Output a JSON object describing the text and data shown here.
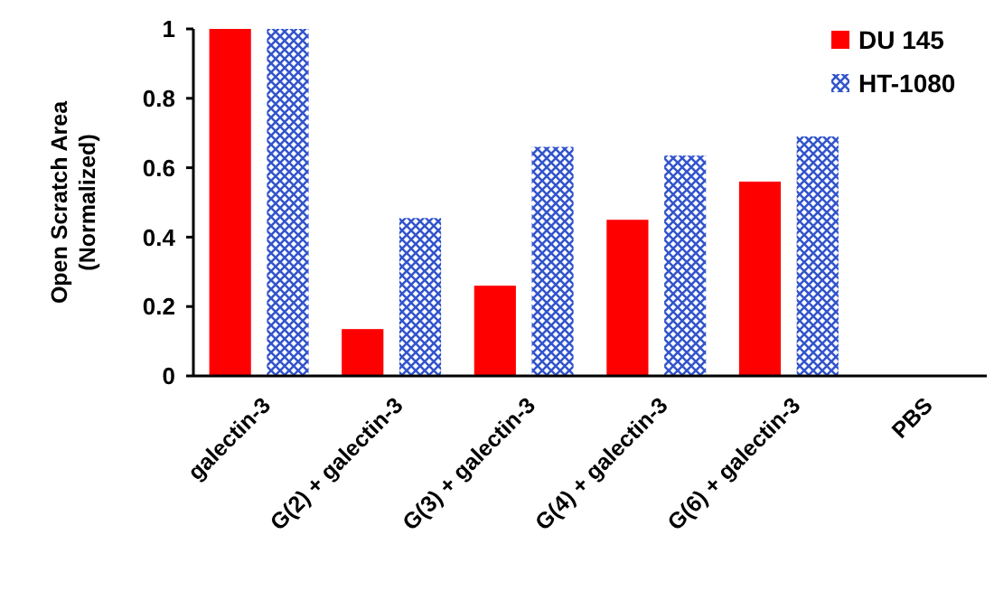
{
  "chart_data": {
    "type": "bar",
    "ylabel": "Open Scratch Area (Normalized)",
    "categories": [
      "galectin-3",
      "G(2) + galectin-3",
      "G(3) + galectin-3",
      "G(4) + galectin-3",
      "G(6) + galectin-3",
      "PBS"
    ],
    "series": [
      {
        "name": "DU 145",
        "color": "#ff0000",
        "values": [
          1,
          0.135,
          0.26,
          0.45,
          0.56,
          0
        ]
      },
      {
        "name": "HT-1080",
        "color": "#3355cc",
        "values": [
          1,
          0.455,
          0.66,
          0.635,
          0.69,
          0
        ]
      }
    ],
    "ylim": [
      0,
      1
    ],
    "yticks": [
      0,
      0.2,
      0.4,
      0.6,
      0.8,
      1
    ],
    "grid": false,
    "legend": "top right"
  }
}
